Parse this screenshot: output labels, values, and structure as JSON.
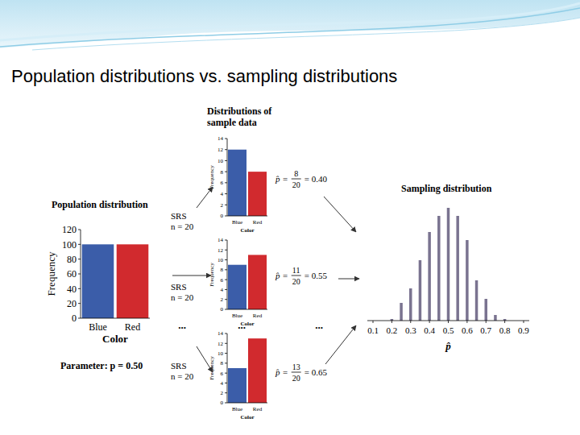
{
  "header": {
    "title": "Population distributions vs. sampling distributions"
  },
  "chart_data": [
    {
      "type": "bar",
      "title": "Population distribution",
      "categories": [
        "Blue",
        "Red"
      ],
      "values": [
        100,
        100
      ],
      "colors": [
        "#3b5da9",
        "#d12a2e"
      ],
      "x_label": "Color",
      "y_label": "Frequency",
      "ylim": [
        0,
        120
      ],
      "yticks": [
        0,
        20,
        40,
        60,
        80,
        100,
        120
      ],
      "annotation": "Parameter: p = 0.50"
    },
    {
      "type": "bar",
      "title": "Distributions of sample data",
      "categories": [
        "Blue",
        "Red"
      ],
      "values": [
        12,
        8
      ],
      "colors": [
        "#3b5da9",
        "#d12a2e"
      ],
      "x_label": "Color",
      "y_label": "Frequency",
      "ylim": [
        0,
        14
      ],
      "yticks": [
        0,
        2,
        4,
        6,
        8,
        10,
        12,
        14
      ],
      "annotation": {
        "lhs": "p̂ =",
        "numerator": "8",
        "denominator": "20",
        "rhs": "= 0.40"
      }
    },
    {
      "type": "bar",
      "categories": [
        "Blue",
        "Red"
      ],
      "values": [
        9,
        11
      ],
      "colors": [
        "#3b5da9",
        "#d12a2e"
      ],
      "x_label": "Color",
      "y_label": "Frequency",
      "ylim": [
        0,
        14
      ],
      "yticks": [
        0,
        2,
        4,
        6,
        8,
        10,
        12,
        14
      ],
      "annotation": {
        "lhs": "p̂ =",
        "numerator": "11",
        "denominator": "20",
        "rhs": "= 0.55"
      }
    },
    {
      "type": "bar",
      "categories": [
        "Blue",
        "Red"
      ],
      "values": [
        7,
        13
      ],
      "colors": [
        "#3b5da9",
        "#d12a2e"
      ],
      "x_label": "Color",
      "y_label": "Frequency",
      "ylim": [
        0,
        14
      ],
      "yticks": [
        0,
        2,
        4,
        6,
        8,
        10,
        12,
        14
      ],
      "annotation": {
        "lhs": "p̂ =",
        "numerator": "13",
        "denominator": "20",
        "rhs": "= 0.65"
      }
    },
    {
      "type": "spike",
      "title": "Sampling distribution",
      "x_label": "p̂",
      "color": "#7a7390",
      "x": [
        0.2,
        0.25,
        0.3,
        0.35,
        0.4,
        0.45,
        0.5,
        0.55,
        0.6,
        0.65,
        0.7,
        0.75,
        0.8
      ],
      "values": [
        2,
        22,
        40,
        75,
        110,
        130,
        140,
        130,
        100,
        50,
        27,
        7,
        2
      ],
      "xlim": [
        0.07,
        0.93
      ],
      "xticks": [
        0.1,
        0.2,
        0.3,
        0.4,
        0.5,
        0.6,
        0.7,
        0.8,
        0.9
      ],
      "ylim": [
        0,
        150
      ],
      "tick_labels": "x"
    }
  ],
  "arrows": [
    {
      "label": "SRS",
      "detail": "n = 20"
    },
    {
      "label": "SRS",
      "detail": "n = 20"
    },
    {
      "label": "SRS",
      "detail": "n = 20"
    }
  ],
  "ellipsis": "..."
}
